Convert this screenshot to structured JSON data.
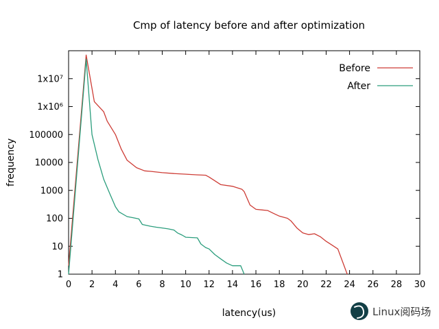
{
  "watermark": {
    "text": "Linux阅码场",
    "logo_color": "#123f46"
  },
  "chart_data": {
    "type": "line",
    "title": "Cmp of latency before and after optimization",
    "xlabel": "latency(us)",
    "ylabel": "frequency",
    "xlim": [
      0,
      30
    ],
    "ylim": [
      1,
      100000000
    ],
    "y_scale": "log",
    "grid": false,
    "legend_position": "top-right-inside",
    "x_ticks": [
      0,
      2,
      4,
      6,
      8,
      10,
      12,
      14,
      16,
      18,
      20,
      22,
      24,
      26,
      28,
      30
    ],
    "y_ticks": [
      {
        "label": "1",
        "value": 1
      },
      {
        "label": "10",
        "value": 10
      },
      {
        "label": "100",
        "value": 100
      },
      {
        "label": "1000",
        "value": 1000
      },
      {
        "label": "10000",
        "value": 10000
      },
      {
        "label": "100000",
        "value": 100000
      },
      {
        "label": "1x10⁶",
        "value": 1000000
      },
      {
        "label": "1x10⁷",
        "value": 10000000
      }
    ],
    "series": [
      {
        "name": "Before",
        "color": "#cd3b34",
        "points": [
          [
            0,
            2
          ],
          [
            1.5,
            70000000
          ],
          [
            2.2,
            1500000
          ],
          [
            3,
            650000
          ],
          [
            3.3,
            300000
          ],
          [
            4,
            100000
          ],
          [
            4.5,
            30000
          ],
          [
            5,
            12000
          ],
          [
            5.8,
            6500
          ],
          [
            6.5,
            5000
          ],
          [
            7,
            4800
          ],
          [
            8,
            4300
          ],
          [
            9,
            4000
          ],
          [
            10,
            3800
          ],
          [
            11,
            3600
          ],
          [
            11.7,
            3500
          ],
          [
            12,
            3000
          ],
          [
            12.5,
            2200
          ],
          [
            13,
            1600
          ],
          [
            14,
            1400
          ],
          [
            14.8,
            1100
          ],
          [
            15,
            900
          ],
          [
            15.5,
            300
          ],
          [
            16,
            210
          ],
          [
            17,
            190
          ],
          [
            17.5,
            150
          ],
          [
            18,
            120
          ],
          [
            18.7,
            100
          ],
          [
            19,
            80
          ],
          [
            19.5,
            45
          ],
          [
            20,
            30
          ],
          [
            20.5,
            26
          ],
          [
            21,
            28
          ],
          [
            21.5,
            22
          ],
          [
            22,
            15
          ],
          [
            22.5,
            11
          ],
          [
            23,
            8
          ],
          [
            23.8,
            1
          ]
        ]
      },
      {
        "name": "After",
        "color": "#2a9d7c",
        "points": [
          [
            0,
            1
          ],
          [
            1.5,
            50000000
          ],
          [
            2,
            100000
          ],
          [
            2.5,
            13000
          ],
          [
            3,
            2500
          ],
          [
            3.5,
            800
          ],
          [
            4,
            260
          ],
          [
            4.3,
            170
          ],
          [
            5,
            115
          ],
          [
            5.5,
            105
          ],
          [
            6,
            95
          ],
          [
            6.3,
            60
          ],
          [
            7,
            52
          ],
          [
            7.5,
            48
          ],
          [
            8,
            45
          ],
          [
            8.5,
            42
          ],
          [
            9,
            38
          ],
          [
            9.3,
            30
          ],
          [
            9.7,
            25
          ],
          [
            10,
            21
          ],
          [
            11,
            20
          ],
          [
            11.3,
            12
          ],
          [
            11.7,
            9
          ],
          [
            12,
            8
          ],
          [
            12.5,
            5
          ],
          [
            13,
            3.5
          ],
          [
            13.5,
            2.5
          ],
          [
            14,
            2
          ],
          [
            14.7,
            2
          ],
          [
            15,
            1
          ]
        ]
      }
    ]
  }
}
